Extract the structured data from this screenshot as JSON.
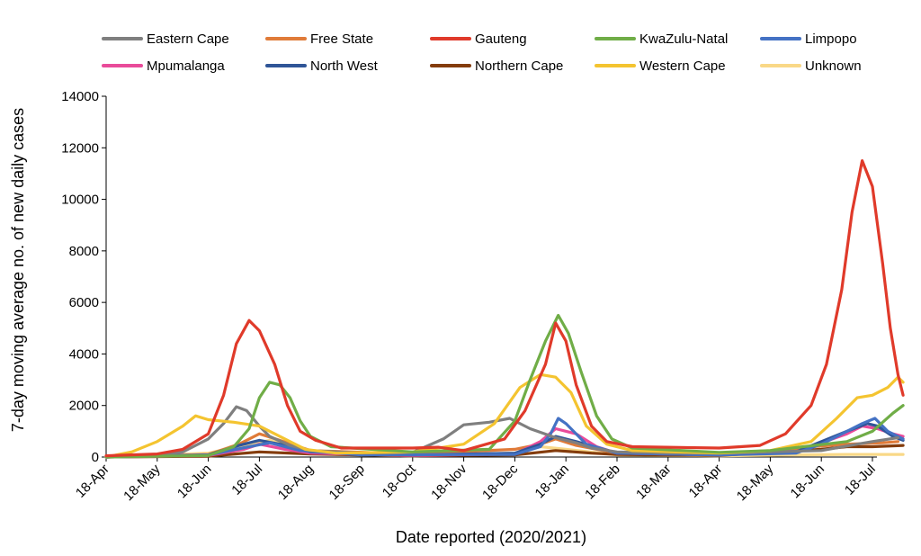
{
  "chart_data": {
    "type": "line",
    "title": "",
    "xlabel": "Date reported (2020/2021)",
    "ylabel": "7-day moving average no. of new daily cases",
    "ylim": [
      0,
      14000
    ],
    "yticks": [
      "0",
      "2000",
      "4000",
      "6000",
      "8000",
      "10000",
      "12000",
      "14000"
    ],
    "xticks": [
      "18-Apr",
      "18-May",
      "18-Jun",
      "18-Jul",
      "18-Aug",
      "18-Sep",
      "18-Oct",
      "18-Nov",
      "18-Dec",
      "18-Jan",
      "18-Feb",
      "18-Mar",
      "18-Apr",
      "18-May",
      "18-Jun",
      "18-Jul"
    ],
    "grid": false,
    "legend_position": "top",
    "series": [
      {
        "name": "Eastern Cape",
        "color": "#7f7f7f",
        "points": [
          [
            0,
            0
          ],
          [
            1,
            50
          ],
          [
            1.5,
            200
          ],
          [
            2,
            700
          ],
          [
            2.3,
            1300
          ],
          [
            2.55,
            1950
          ],
          [
            2.75,
            1800
          ],
          [
            3,
            1200
          ],
          [
            3.2,
            800
          ],
          [
            3.6,
            450
          ],
          [
            4,
            250
          ],
          [
            5,
            150
          ],
          [
            6,
            180
          ],
          [
            6.6,
            700
          ],
          [
            7,
            1250
          ],
          [
            7.5,
            1350
          ],
          [
            7.9,
            1500
          ],
          [
            8.3,
            1100
          ],
          [
            8.8,
            750
          ],
          [
            9.2,
            550
          ],
          [
            9.5,
            350
          ],
          [
            10,
            200
          ],
          [
            11,
            150
          ],
          [
            12,
            150
          ],
          [
            13,
            200
          ],
          [
            14,
            250
          ],
          [
            14.7,
            500
          ],
          [
            15,
            600
          ],
          [
            15.5,
            750
          ]
        ]
      },
      {
        "name": "Free State",
        "color": "#e07b39",
        "points": [
          [
            0,
            0
          ],
          [
            2,
            100
          ],
          [
            2.6,
            500
          ],
          [
            3,
            900
          ],
          [
            3.4,
            650
          ],
          [
            4,
            250
          ],
          [
            6,
            120
          ],
          [
            8,
            300
          ],
          [
            8.5,
            500
          ],
          [
            8.8,
            700
          ],
          [
            9.2,
            450
          ],
          [
            10,
            150
          ],
          [
            12,
            100
          ],
          [
            13,
            220
          ],
          [
            13.8,
            400
          ],
          [
            14.5,
            500
          ],
          [
            15.2,
            550
          ],
          [
            15.5,
            600
          ]
        ]
      },
      {
        "name": "Gauteng",
        "color": "#e03a2a",
        "points": [
          [
            0,
            50
          ],
          [
            1,
            120
          ],
          [
            1.5,
            300
          ],
          [
            2,
            900
          ],
          [
            2.3,
            2400
          ],
          [
            2.55,
            4400
          ],
          [
            2.8,
            5300
          ],
          [
            3,
            4900
          ],
          [
            3.3,
            3600
          ],
          [
            3.55,
            2000
          ],
          [
            3.8,
            1000
          ],
          [
            4.1,
            650
          ],
          [
            4.6,
            350
          ],
          [
            6,
            350
          ],
          [
            6.5,
            380
          ],
          [
            7,
            250
          ],
          [
            7.8,
            700
          ],
          [
            8.2,
            1800
          ],
          [
            8.6,
            3600
          ],
          [
            8.8,
            5200
          ],
          [
            9,
            4500
          ],
          [
            9.2,
            2800
          ],
          [
            9.5,
            1200
          ],
          [
            9.8,
            600
          ],
          [
            10.3,
            400
          ],
          [
            12,
            350
          ],
          [
            12.8,
            450
          ],
          [
            13.3,
            900
          ],
          [
            13.8,
            2000
          ],
          [
            14.1,
            3600
          ],
          [
            14.4,
            6500
          ],
          [
            14.6,
            9500
          ],
          [
            14.8,
            11500
          ],
          [
            15,
            10500
          ],
          [
            15.2,
            7500
          ],
          [
            15.35,
            5000
          ],
          [
            15.5,
            3200
          ],
          [
            15.6,
            2400
          ]
        ]
      },
      {
        "name": "KwaZulu-Natal",
        "color": "#70ad47",
        "points": [
          [
            0,
            0
          ],
          [
            2,
            60
          ],
          [
            2.5,
            400
          ],
          [
            2.8,
            1100
          ],
          [
            3,
            2300
          ],
          [
            3.2,
            2900
          ],
          [
            3.4,
            2800
          ],
          [
            3.6,
            2300
          ],
          [
            3.8,
            1400
          ],
          [
            4,
            800
          ],
          [
            4.4,
            400
          ],
          [
            6,
            200
          ],
          [
            7.5,
            300
          ],
          [
            8,
            1400
          ],
          [
            8.3,
            3000
          ],
          [
            8.6,
            4500
          ],
          [
            8.85,
            5500
          ],
          [
            9.05,
            4800
          ],
          [
            9.3,
            3300
          ],
          [
            9.6,
            1600
          ],
          [
            9.9,
            700
          ],
          [
            10.3,
            350
          ],
          [
            12,
            180
          ],
          [
            13,
            250
          ],
          [
            14.5,
            600
          ],
          [
            15,
            1000
          ],
          [
            15.4,
            1700
          ],
          [
            15.6,
            2000
          ]
        ]
      },
      {
        "name": "Limpopo",
        "color": "#4472c4",
        "points": [
          [
            0,
            0
          ],
          [
            2,
            80
          ],
          [
            2.8,
            400
          ],
          [
            3.2,
            550
          ],
          [
            3.8,
            250
          ],
          [
            5,
            80
          ],
          [
            8,
            100
          ],
          [
            8.5,
            400
          ],
          [
            8.7,
            900
          ],
          [
            8.85,
            1500
          ],
          [
            9,
            1300
          ],
          [
            9.4,
            500
          ],
          [
            10,
            150
          ],
          [
            12,
            80
          ],
          [
            13.5,
            150
          ],
          [
            14,
            500
          ],
          [
            14.5,
            1000
          ],
          [
            14.8,
            1300
          ],
          [
            15.05,
            1500
          ],
          [
            15.3,
            1000
          ],
          [
            15.6,
            700
          ]
        ]
      },
      {
        "name": "Mpumalanga",
        "color": "#e94b9a",
        "points": [
          [
            0,
            0
          ],
          [
            2,
            60
          ],
          [
            2.7,
            300
          ],
          [
            3,
            500
          ],
          [
            3.5,
            300
          ],
          [
            4,
            150
          ],
          [
            6,
            60
          ],
          [
            8,
            120
          ],
          [
            8.5,
            600
          ],
          [
            8.8,
            1100
          ],
          [
            9.2,
            900
          ],
          [
            9.6,
            400
          ],
          [
            10,
            150
          ],
          [
            12,
            80
          ],
          [
            13.5,
            200
          ],
          [
            14,
            550
          ],
          [
            14.5,
            900
          ],
          [
            14.8,
            1200
          ],
          [
            15.1,
            1100
          ],
          [
            15.4,
            900
          ],
          [
            15.6,
            800
          ]
        ]
      },
      {
        "name": "North West",
        "color": "#2f5597",
        "points": [
          [
            0,
            0
          ],
          [
            2,
            80
          ],
          [
            2.6,
            450
          ],
          [
            3,
            650
          ],
          [
            3.4,
            500
          ],
          [
            4,
            200
          ],
          [
            6,
            80
          ],
          [
            8,
            150
          ],
          [
            8.5,
            500
          ],
          [
            8.8,
            800
          ],
          [
            9.2,
            600
          ],
          [
            10,
            150
          ],
          [
            12,
            80
          ],
          [
            13.5,
            200
          ],
          [
            14,
            600
          ],
          [
            14.5,
            1000
          ],
          [
            14.9,
            1300
          ],
          [
            15.1,
            1200
          ],
          [
            15.4,
            800
          ],
          [
            15.6,
            650
          ]
        ]
      },
      {
        "name": "Northern Cape",
        "color": "#843c0c",
        "points": [
          [
            0,
            0
          ],
          [
            2,
            30
          ],
          [
            3,
            200
          ],
          [
            4,
            120
          ],
          [
            6,
            50
          ],
          [
            8,
            80
          ],
          [
            8.8,
            250
          ],
          [
            9.5,
            150
          ],
          [
            10,
            100
          ],
          [
            12,
            60
          ],
          [
            13,
            180
          ],
          [
            14,
            300
          ],
          [
            14.5,
            400
          ],
          [
            15,
            400
          ],
          [
            15.6,
            450
          ]
        ]
      },
      {
        "name": "Western Cape",
        "color": "#f4c430",
        "points": [
          [
            0,
            0
          ],
          [
            0.5,
            200
          ],
          [
            1,
            600
          ],
          [
            1.5,
            1200
          ],
          [
            1.75,
            1600
          ],
          [
            2,
            1450
          ],
          [
            2.5,
            1350
          ],
          [
            3,
            1200
          ],
          [
            3.5,
            700
          ],
          [
            3.9,
            300
          ],
          [
            4.5,
            150
          ],
          [
            6,
            200
          ],
          [
            7,
            500
          ],
          [
            7.6,
            1300
          ],
          [
            8.1,
            2700
          ],
          [
            8.5,
            3200
          ],
          [
            8.8,
            3100
          ],
          [
            9.1,
            2500
          ],
          [
            9.4,
            1200
          ],
          [
            9.8,
            500
          ],
          [
            10.3,
            250
          ],
          [
            12,
            150
          ],
          [
            13,
            250
          ],
          [
            13.8,
            600
          ],
          [
            14.3,
            1500
          ],
          [
            14.7,
            2300
          ],
          [
            15,
            2400
          ],
          [
            15.3,
            2700
          ],
          [
            15.5,
            3100
          ],
          [
            15.6,
            2900
          ]
        ]
      },
      {
        "name": "Unknown",
        "color": "#f9d887",
        "points": [
          [
            0,
            0
          ],
          [
            2,
            150
          ],
          [
            2.8,
            500
          ],
          [
            3.2,
            650
          ],
          [
            3.8,
            300
          ],
          [
            4.5,
            100
          ],
          [
            6,
            50
          ],
          [
            8,
            150
          ],
          [
            8.5,
            400
          ],
          [
            9,
            300
          ],
          [
            10,
            80
          ],
          [
            12,
            50
          ],
          [
            13.5,
            80
          ],
          [
            14.5,
            100
          ],
          [
            15.6,
            100
          ]
        ]
      }
    ]
  }
}
